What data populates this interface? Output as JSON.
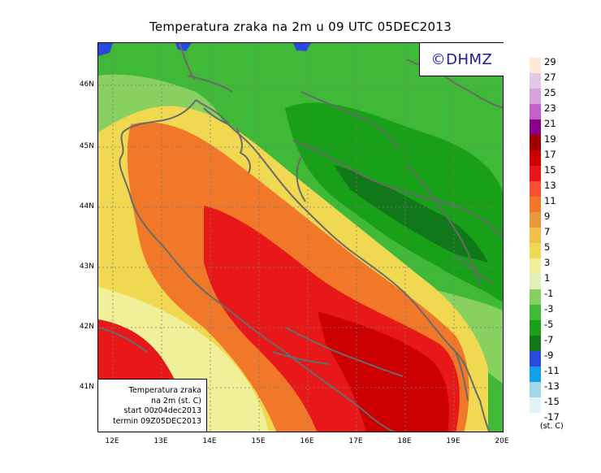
{
  "title": "Temperatura zraka na 2m u 09 UTC 05DEC2013",
  "logo": "©DHMZ",
  "info_box": {
    "line1": "Temperatura zraka",
    "line2": "na 2m (st. C)",
    "line3": "start 00z04dec2013",
    "line4": "termin 09Z05DEC2013"
  },
  "lat_labels": [
    "46N",
    "45N",
    "44N",
    "43N",
    "42N",
    "41N"
  ],
  "lon_labels": [
    "12E",
    "13E",
    "14E",
    "15E",
    "16E",
    "17E",
    "18E",
    "19E",
    "20E"
  ],
  "legend": {
    "units": "(st. C)",
    "labels": [
      "29",
      "27",
      "25",
      "23",
      "21",
      "19",
      "17",
      "15",
      "13",
      "11",
      "9",
      "7",
      "5",
      "3",
      "1",
      "-1",
      "-3",
      "-5",
      "-7",
      "-9",
      "-11",
      "-13",
      "-15",
      "-17"
    ],
    "colors": [
      "#fde9d6",
      "#e0c8e6",
      "#d8a0dc",
      "#c060c8",
      "#880088",
      "#a00000",
      "#cc0000",
      "#e81818",
      "#f85030",
      "#f07828",
      "#e89838",
      "#f0c048",
      "#f0d850",
      "#f0f098",
      "#e0f0b8",
      "#88d060",
      "#40b838",
      "#18a018",
      "#107818",
      "#2848e0",
      "#10a0e8",
      "#a0d8e8",
      "#e0f4f8",
      "#ffffff"
    ]
  }
}
